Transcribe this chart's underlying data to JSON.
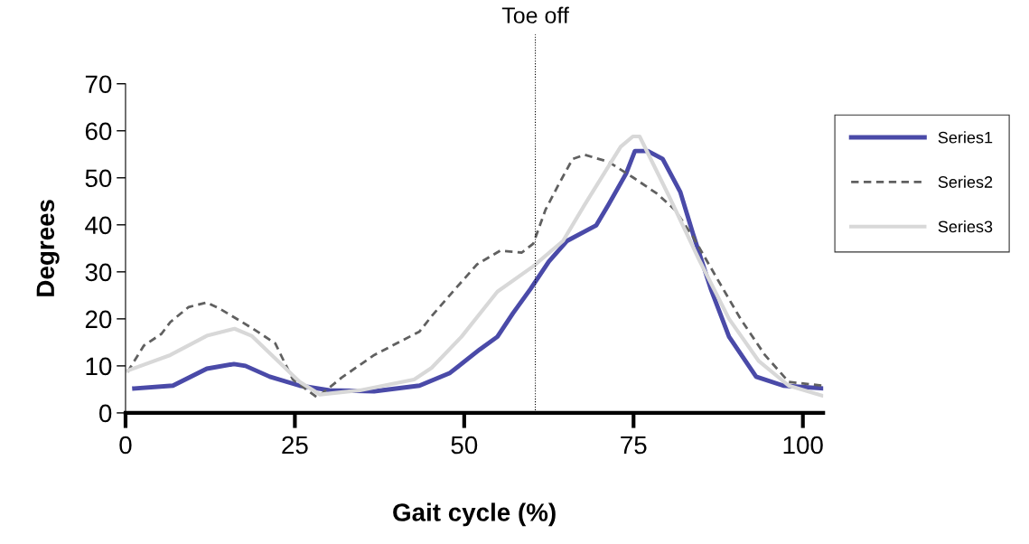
{
  "chart_data": {
    "type": "line",
    "xlabel": "Gait cycle (%)",
    "ylabel": "Degrees",
    "xlim": [
      0,
      103
    ],
    "ylim": [
      0,
      70
    ],
    "xticks": [
      0,
      25,
      50,
      75,
      100
    ],
    "yticks": [
      0,
      10,
      20,
      30,
      40,
      50,
      60,
      70
    ],
    "grid": false,
    "legend": "top right",
    "marker": "none",
    "ref_lines": [
      {
        "axis": "x",
        "value": 60.5,
        "label": "Toe off",
        "color": "#000000",
        "line_style": "dotted"
      }
    ],
    "series": [
      {
        "name": "Series1",
        "color": "#4a4aa8",
        "line_style": "solid",
        "x": [
          1.3,
          7.0,
          12.0,
          16.0,
          17.7,
          21.3,
          25.7,
          30.1,
          36.7,
          43.4,
          47.9,
          52.3,
          54.9,
          57.2,
          59.8,
          62.5,
          65.2,
          69.5,
          71.3,
          73.9,
          75.2,
          77.1,
          79.3,
          81.9,
          83.8,
          86.4,
          89.1,
          93.1,
          97.1,
          103
        ],
        "values": [
          5.2,
          5.8,
          9.4,
          10.4,
          10.0,
          7.7,
          5.8,
          4.8,
          4.6,
          5.8,
          8.5,
          13.5,
          16.2,
          21.2,
          26.4,
          32.2,
          36.6,
          39.9,
          44.3,
          50.9,
          55.7,
          55.7,
          54,
          47,
          38,
          26.4,
          16.2,
          7.7,
          5.8,
          5.2
        ]
      },
      {
        "name": "Series2",
        "color": "#606060",
        "line_style": "dashed",
        "x": [
          0.3,
          2.7,
          5.3,
          6.6,
          9.3,
          12.0,
          14.1,
          18.6,
          22.1,
          24.7,
          28.3,
          31.9,
          36.7,
          43.4,
          45.2,
          48.7,
          51.9,
          55.3,
          58.5,
          60.2,
          62.0,
          63.8,
          66.0,
          67.8,
          71.3,
          74.9,
          78.5,
          81.1,
          83.8,
          87.2,
          90.8,
          94.4,
          97.9,
          103
        ],
        "values": [
          8.7,
          14.3,
          16.8,
          19.3,
          22.5,
          23.5,
          22,
          18.1,
          14.8,
          7.1,
          3.3,
          7.5,
          12.3,
          17.3,
          20.6,
          26.4,
          31.6,
          34.5,
          34.1,
          36,
          43.2,
          48.2,
          54,
          54.9,
          53.4,
          50.1,
          46.6,
          43.2,
          37.4,
          28.9,
          20,
          12.3,
          6.6,
          5.8
        ]
      },
      {
        "name": "Series3",
        "color": "#d8d8d8",
        "line_style": "solid",
        "x": [
          0.3,
          6.6,
          12.0,
          16.1,
          18.6,
          25.7,
          28.7,
          34.6,
          42.6,
          45.2,
          49.6,
          54.9,
          60.2,
          64.6,
          67.8,
          73.1,
          74.9,
          75.9,
          80.2,
          84.6,
          89.1,
          93.5,
          97.9,
          102.8
        ],
        "values": [
          9,
          12.3,
          16.4,
          17.9,
          16.4,
          6.6,
          3.9,
          4.8,
          7.1,
          9.6,
          16.2,
          25.8,
          31.2,
          36.6,
          44.3,
          56.6,
          58.8,
          58.8,
          46.2,
          32.8,
          20,
          11,
          5.8,
          3.7
        ]
      }
    ]
  }
}
